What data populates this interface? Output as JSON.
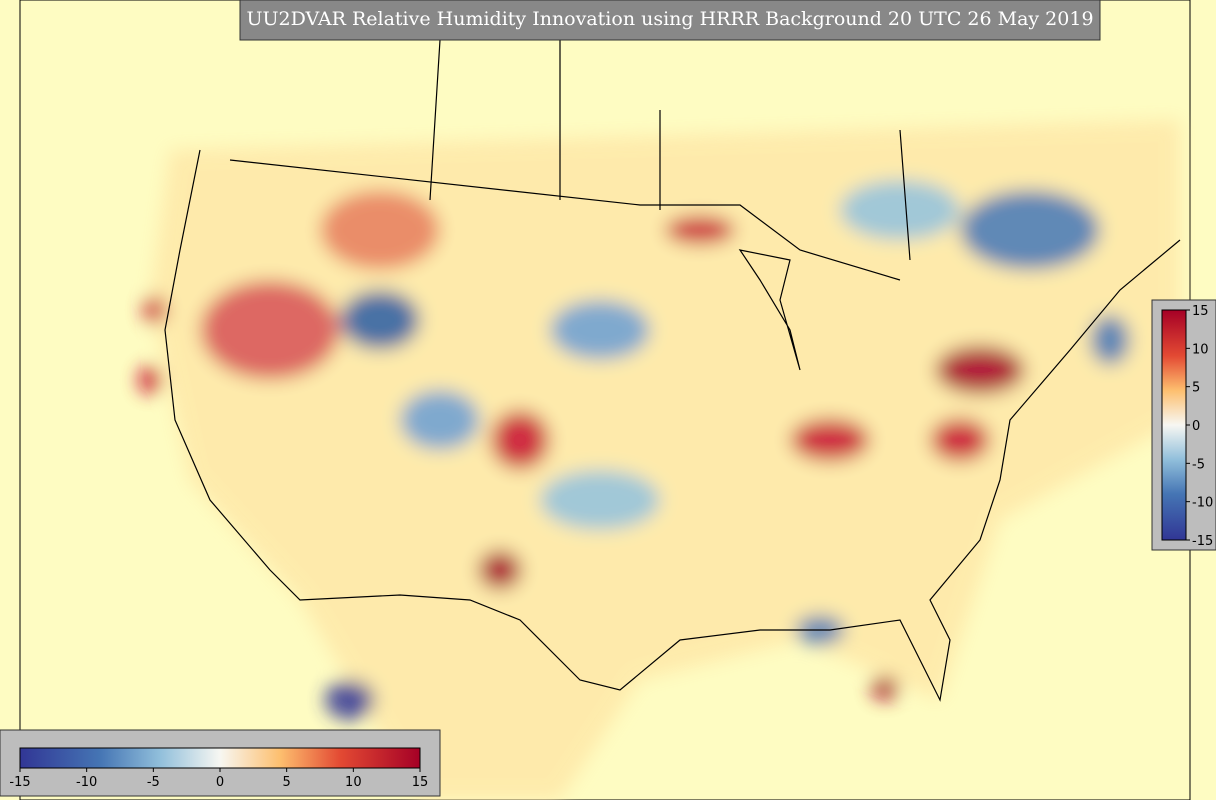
{
  "header": {
    "title": "UU2DVAR Relative Humidity Innovation using HRRR Background 20 UTC 26 May 2019"
  },
  "colorbar_right": {
    "ticks": [
      15,
      10,
      5,
      0,
      -5,
      -10,
      -15
    ]
  },
  "colorbar_bottom": {
    "ticks": [
      -15,
      -10,
      -5,
      0,
      5,
      10,
      15
    ]
  }
}
